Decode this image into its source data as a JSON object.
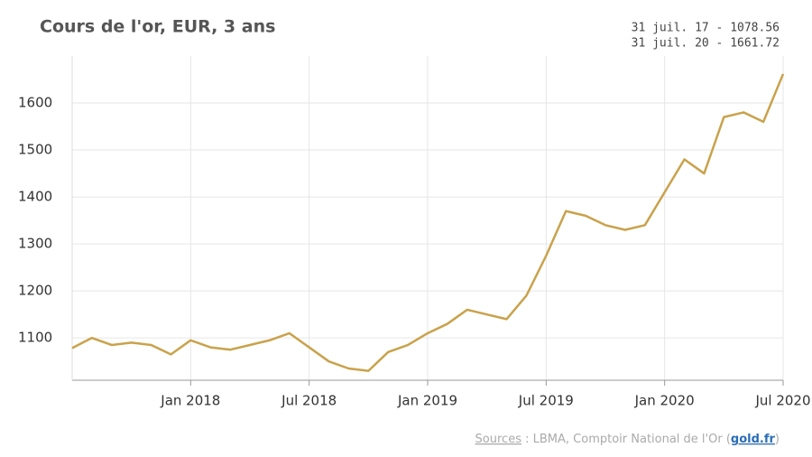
{
  "chart_data": {
    "type": "line",
    "title": "Cours de l'or, EUR, 3 ans",
    "summary": [
      "31 juil. 17 - 1078.56",
      "31 juil. 20 - 1661.72"
    ],
    "x": [
      "2017-07",
      "2017-08",
      "2017-09",
      "2017-10",
      "2017-11",
      "2017-12",
      "2018-01",
      "2018-02",
      "2018-03",
      "2018-04",
      "2018-05",
      "2018-06",
      "2018-07",
      "2018-08",
      "2018-09",
      "2018-10",
      "2018-11",
      "2018-12",
      "2019-01",
      "2019-02",
      "2019-03",
      "2019-04",
      "2019-05",
      "2019-06",
      "2019-07",
      "2019-08",
      "2019-09",
      "2019-10",
      "2019-11",
      "2019-12",
      "2020-01",
      "2020-02",
      "2020-03",
      "2020-04",
      "2020-05",
      "2020-06",
      "2020-07"
    ],
    "series": [
      {
        "name": "EUR",
        "color": "#c9a24b",
        "values": [
          1078.56,
          1100,
          1085,
          1090,
          1085,
          1065,
          1095,
          1080,
          1075,
          1085,
          1095,
          1110,
          1080,
          1050,
          1035,
          1030,
          1070,
          1085,
          1110,
          1130,
          1160,
          1150,
          1140,
          1190,
          1275,
          1370,
          1360,
          1340,
          1330,
          1340,
          1410,
          1480,
          1450,
          1570,
          1580,
          1560,
          1661.72
        ]
      }
    ],
    "xlim": [
      "2017-07",
      "2020-07"
    ],
    "xticks": [
      {
        "value": "2018-01",
        "label": "Jan 2018"
      },
      {
        "value": "2018-07",
        "label": "Jul 2018"
      },
      {
        "value": "2019-01",
        "label": "Jan 2019"
      },
      {
        "value": "2019-07",
        "label": "Jul 2019"
      },
      {
        "value": "2020-01",
        "label": "Jan 2020"
      },
      {
        "value": "2020-07",
        "label": "Jul 2020"
      }
    ],
    "ylim": [
      1010,
      1700
    ],
    "yticks": [
      1100,
      1200,
      1300,
      1400,
      1500,
      1600
    ],
    "grid": true,
    "source": {
      "link": "Sources",
      "text": " : LBMA, Comptoir National de l'Or (",
      "site": "gold.fr",
      "end": ")"
    }
  }
}
